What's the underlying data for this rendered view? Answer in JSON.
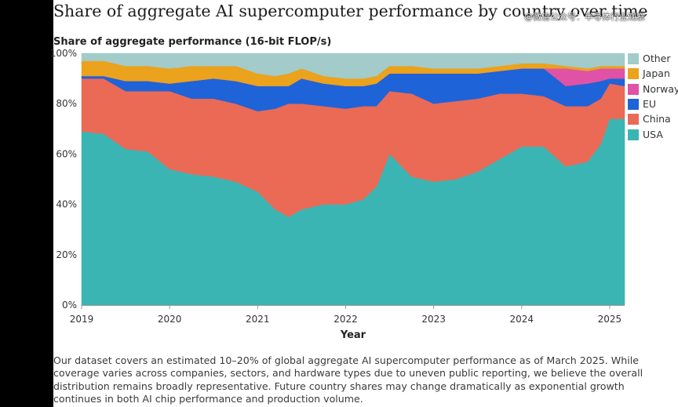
{
  "title": "Share of aggregate AI supercomputer performance by country over time",
  "watermark": "@微信公众号：半导体行业观察",
  "caption": "Our dataset covers an estimated 10–20% of global aggregate AI supercomputer performance as of March 2025. While coverage varies across companies, sectors, and hardware types due to uneven public reporting, we believe the overall distribution remains broadly representative. Future country shares may change dramatically as exponential growth continues in both AI chip performance and production volume.",
  "chart_data": {
    "type": "area",
    "stacked": true,
    "subtitle": "Share of aggregate performance (16-bit FLOP/s)",
    "xlabel": "Year",
    "ylabel": "",
    "xlim": [
      2019.0,
      2025.17
    ],
    "ylim": [
      0,
      100
    ],
    "x_ticks": [
      "2019",
      "2020",
      "2021",
      "2022",
      "2023",
      "2024",
      "2025"
    ],
    "y_ticks": [
      "0%",
      "20%",
      "40%",
      "60%",
      "80%",
      "100%"
    ],
    "legend_position": "right",
    "x": [
      2019.0,
      2019.25,
      2019.5,
      2019.75,
      2020.0,
      2020.25,
      2020.5,
      2020.75,
      2021.0,
      2021.2,
      2021.35,
      2021.5,
      2021.75,
      2022.0,
      2022.2,
      2022.35,
      2022.5,
      2022.75,
      2023.0,
      2023.25,
      2023.5,
      2023.75,
      2024.0,
      2024.25,
      2024.5,
      2024.75,
      2024.9,
      2025.0,
      2025.17
    ],
    "series": [
      {
        "name": "USA",
        "color": "#3bb5b3",
        "values": [
          69,
          68,
          62,
          61,
          54,
          52,
          51,
          49,
          45,
          38,
          35,
          38,
          40,
          40,
          42,
          47,
          60,
          51,
          49,
          50,
          53,
          58,
          63,
          63,
          55,
          57,
          64,
          74,
          74
        ]
      },
      {
        "name": "China",
        "color": "#ea6a56",
        "values": [
          21,
          22,
          23,
          24,
          31,
          30,
          31,
          31,
          32,
          40,
          45,
          42,
          39,
          38,
          37,
          32,
          25,
          33,
          31,
          31,
          29,
          26,
          21,
          20,
          24,
          22,
          18,
          14,
          13
        ]
      },
      {
        "name": "EU",
        "color": "#1f63d8",
        "values": [
          1,
          1,
          4,
          4,
          3,
          7,
          8,
          9,
          10,
          9,
          7,
          10,
          9,
          9,
          8,
          9,
          7,
          8,
          12,
          11,
          10,
          9,
          10,
          11,
          8,
          9,
          7,
          2,
          3
        ]
      },
      {
        "name": "Norway",
        "color": "#e052a5",
        "values": [
          0,
          0,
          0,
          0,
          0,
          0,
          0,
          0,
          0,
          0,
          0,
          0,
          0,
          0,
          0,
          0,
          0,
          0,
          0,
          0,
          0,
          0,
          0,
          0,
          7,
          5,
          5,
          4,
          4
        ]
      },
      {
        "name": "Japan",
        "color": "#eba21c",
        "values": [
          6,
          6,
          6,
          6,
          6,
          6,
          5,
          6,
          5,
          4,
          5,
          4,
          3,
          3,
          3,
          3,
          3,
          3,
          2,
          2,
          2,
          2,
          2,
          2,
          1,
          1,
          1,
          1,
          1
        ]
      },
      {
        "name": "Other",
        "color": "#a2cbca",
        "values": [
          3,
          3,
          5,
          5,
          6,
          5,
          5,
          5,
          8,
          9,
          8,
          6,
          9,
          10,
          10,
          9,
          5,
          5,
          6,
          6,
          6,
          5,
          4,
          4,
          5,
          6,
          5,
          5,
          5
        ]
      }
    ]
  }
}
